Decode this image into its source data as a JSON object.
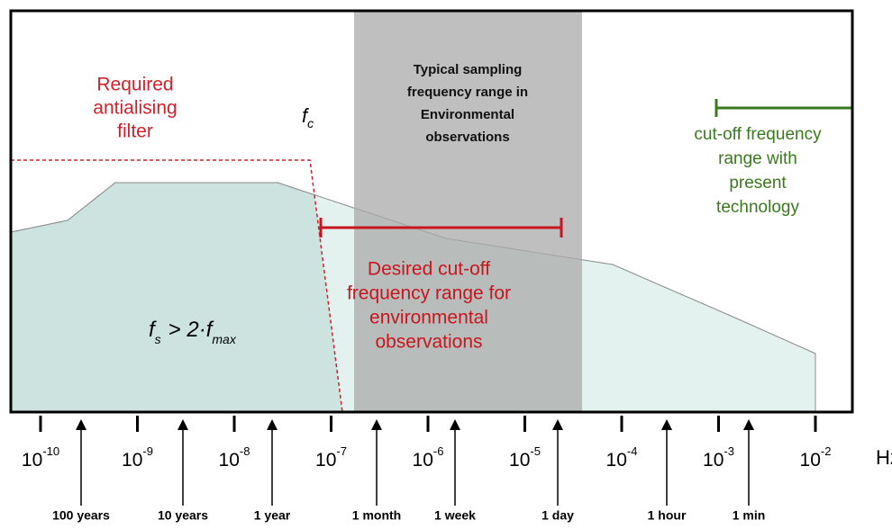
{
  "diagram": {
    "antialiasing_label": [
      "Required",
      "antialising",
      "filter"
    ],
    "fc": {
      "main": "f",
      "sub": "c"
    },
    "band_label": [
      "Typical sampling",
      "frequency range in",
      "Environmental",
      "observations"
    ],
    "present_label": [
      "cut-off frequency",
      "range with",
      "present",
      "technology"
    ],
    "desired_label": [
      "Desired cut-off",
      "frequency range for",
      "environmental",
      "observations"
    ],
    "formula": {
      "f": "f",
      "s": "s",
      "op": "> 2·f",
      "max": "max"
    },
    "axis_unit": "Hz",
    "axis_ticks": [
      {
        "base": "10",
        "exp": "-10"
      },
      {
        "base": "10",
        "exp": "-9"
      },
      {
        "base": "10",
        "exp": "-8"
      },
      {
        "base": "10",
        "exp": "-7"
      },
      {
        "base": "10",
        "exp": "-6"
      },
      {
        "base": "10",
        "exp": "-5"
      },
      {
        "base": "10",
        "exp": "-4"
      },
      {
        "base": "10",
        "exp": "-3"
      },
      {
        "base": "10",
        "exp": "-2"
      }
    ],
    "time_markers": [
      "100 years",
      "10 years",
      "1 year",
      "1 month",
      "1 week",
      "1 day",
      "1 hour",
      "1 min"
    ]
  }
}
